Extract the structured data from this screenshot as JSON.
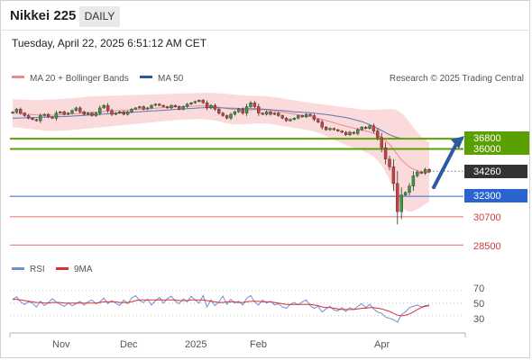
{
  "header": {
    "title": "Nikkei 225",
    "timeframe": "DAILY",
    "datetime": "Tuesday, April 22, 2025 6:51:12 AM CET"
  },
  "credit": "Research © 2025 Trading Central",
  "legend": {
    "ma20": "MA 20 + Bollinger Bands",
    "ma50": "MA 50",
    "rsi": "RSI",
    "rsi_ma": "9MA"
  },
  "colors": {
    "candle_up": "#3a9a3a",
    "candle_down": "#d23b3b",
    "bollinger_fill": "#fadada",
    "ma20": "#e88d8d",
    "ma50": "#5a78b4",
    "resistance": "#5aa000",
    "pivot": "#2a64d0",
    "support": "#e07070",
    "arrow": "#2c5aa0",
    "rsi": "#6f8fd6",
    "rsi_ma": "#d83030"
  },
  "chart_data": [
    {
      "type": "candlestick",
      "y_range": [
        27600,
        40600
      ],
      "x_labels": [
        "Nov",
        "Dec",
        "2025",
        "Feb",
        "Apr"
      ],
      "series": [
        {
          "name": "Nikkei 225",
          "close": [
            38880,
            39100,
            38800,
            38600,
            38400,
            38300,
            38200,
            38600,
            38700,
            38500,
            38400,
            38800,
            38900,
            38700,
            38800,
            39000,
            39200,
            38900,
            38700,
            38800,
            38600,
            38800,
            39200,
            39400,
            39000,
            38700,
            38800,
            38900,
            38700,
            38900,
            39100,
            39200,
            39300,
            39100,
            39200,
            39400,
            39500,
            39400,
            39300,
            39200,
            39400,
            39300,
            39100,
            39300,
            39500,
            39600,
            39700,
            39800,
            39600,
            39200,
            39400,
            39100,
            38800,
            38600,
            38400,
            38700,
            38900,
            39100,
            38800,
            39300,
            39600,
            39300,
            38800,
            38700,
            38900,
            38700,
            38800,
            38600,
            38400,
            38200,
            38300,
            38400,
            38600,
            38500,
            38700,
            38600,
            38300,
            38100,
            37700,
            37500,
            37600,
            37500,
            37400,
            37300,
            37100,
            37300,
            37200,
            37500,
            37700,
            37600,
            37800,
            37400,
            36900,
            36100,
            35200,
            34600,
            33300,
            31100,
            32400,
            32600,
            33100,
            33900,
            34200,
            34100,
            34400,
            34200
          ],
          "ma20": [
            38800,
            38780,
            38750,
            38720,
            38700,
            38680,
            38660,
            38650,
            38640,
            38630,
            38630,
            38640,
            38660,
            38680,
            38700,
            38720,
            38750,
            38780,
            38810,
            38840,
            38860,
            38880,
            38900,
            38920,
            38940,
            38960,
            38980,
            39000,
            39020,
            39040,
            39060,
            39080,
            39100,
            39120,
            39140,
            39160,
            39180,
            39200,
            39220,
            39240,
            39260,
            39280,
            39300,
            39310,
            39320,
            39330,
            39340,
            39350,
            39350,
            39340,
            39320,
            39290,
            39250,
            39200,
            39150,
            39110,
            39080,
            39060,
            39040,
            39040,
            39050,
            39060,
            39070,
            39060,
            39040,
            39010,
            38970,
            38920,
            38870,
            38820,
            38770,
            38720,
            38670,
            38620,
            38570,
            38520,
            38460,
            38390,
            38310,
            38220,
            38130,
            38040,
            37950,
            37860,
            37780,
            37700,
            37620,
            37550,
            37480,
            37400,
            37320,
            37220,
            37080,
            36900,
            36650,
            36350,
            35980,
            35550,
            35150,
            34850,
            34600,
            34420,
            34300,
            34230,
            34200,
            34180
          ],
          "bb_upper": [
            39900,
            39880,
            39860,
            39840,
            39830,
            39820,
            39820,
            39830,
            39840,
            39850,
            39860,
            39880,
            39900,
            39920,
            39940,
            39960,
            39990,
            40020,
            40050,
            40080,
            40100,
            40110,
            40120,
            40130,
            40140,
            40150,
            40160,
            40170,
            40180,
            40190,
            40200,
            40210,
            40220,
            40230,
            40240,
            40250,
            40260,
            40270,
            40280,
            40290,
            40300,
            40310,
            40320,
            40330,
            40340,
            40350,
            40360,
            40370,
            40380,
            40380,
            40370,
            40360,
            40340,
            40320,
            40300,
            40270,
            40240,
            40210,
            40180,
            40150,
            40140,
            40140,
            40140,
            40130,
            40110,
            40080,
            40040,
            40000,
            39950,
            39900,
            39850,
            39800,
            39750,
            39700,
            39650,
            39600,
            39560,
            39520,
            39480,
            39440,
            39400,
            39360,
            39320,
            39280,
            39240,
            39200,
            39160,
            39120,
            39080,
            39060,
            39050,
            39050,
            39060,
            39080,
            39100,
            39120,
            39100,
            39000,
            38800,
            38500,
            38100,
            37700,
            37300,
            37000,
            36700,
            36500
          ],
          "bb_lower": [
            37700,
            37680,
            37640,
            37600,
            37570,
            37540,
            37500,
            37470,
            37440,
            37410,
            37400,
            37400,
            37420,
            37440,
            37460,
            37480,
            37510,
            37540,
            37570,
            37600,
            37620,
            37650,
            37680,
            37710,
            37740,
            37770,
            37800,
            37830,
            37860,
            37890,
            37920,
            37950,
            37980,
            38010,
            38040,
            38070,
            38100,
            38130,
            38160,
            38190,
            38220,
            38250,
            38280,
            38290,
            38300,
            38310,
            38320,
            38330,
            38320,
            38300,
            38270,
            38220,
            38160,
            38080,
            38000,
            37950,
            37920,
            37910,
            37900,
            37930,
            37960,
            37980,
            38000,
            37990,
            37970,
            37940,
            37900,
            37840,
            37790,
            37740,
            37690,
            37640,
            37590,
            37540,
            37490,
            37440,
            37360,
            37260,
            37140,
            37000,
            36860,
            36720,
            36580,
            36440,
            36320,
            36200,
            36080,
            35980,
            35880,
            35740,
            35590,
            35390,
            35100,
            34720,
            34200,
            33580,
            32860,
            32100,
            31500,
            31200,
            31100,
            31140,
            31300,
            31460,
            31700,
            31860
          ],
          "ma50": [
            38400,
            38410,
            38420,
            38430,
            38440,
            38450,
            38460,
            38470,
            38480,
            38490,
            38500,
            38510,
            38520,
            38530,
            38540,
            38560,
            38580,
            38600,
            38620,
            38640,
            38660,
            38680,
            38700,
            38720,
            38740,
            38760,
            38780,
            38800,
            38820,
            38840,
            38860,
            38880,
            38900,
            38920,
            38940,
            38960,
            38980,
            39000,
            39020,
            39040,
            39060,
            39080,
            39100,
            39120,
            39140,
            39160,
            39180,
            39200,
            39210,
            39220,
            39220,
            39220,
            39210,
            39200,
            39190,
            39180,
            39170,
            39160,
            39150,
            39140,
            39130,
            39130,
            39120,
            39100,
            39080,
            39060,
            39040,
            39020,
            38990,
            38960,
            38930,
            38900,
            38880,
            38860,
            38840,
            38820,
            38790,
            38760,
            38720,
            38680,
            38640,
            38600,
            38550,
            38500,
            38450,
            38380,
            38300,
            38220,
            38130,
            38020,
            37900,
            37760,
            37600,
            37440,
            37270,
            37110,
            36980,
            36880,
            36820,
            36790,
            36780,
            36780,
            36780,
            36780,
            36780,
            36780
          ]
        }
      ],
      "levels": [
        {
          "value": 36800,
          "role": "resistance"
        },
        {
          "value": 36000,
          "role": "resistance"
        },
        {
          "value": 34260,
          "role": "last"
        },
        {
          "value": 32300,
          "role": "pivot"
        },
        {
          "value": 30700,
          "role": "support"
        },
        {
          "value": 28500,
          "role": "support"
        }
      ],
      "projection": {
        "from": 33000,
        "to": 36800
      }
    },
    {
      "type": "line",
      "title": "RSI",
      "y_range": [
        7,
        84
      ],
      "ticks": [
        70,
        50,
        30
      ],
      "series": [
        {
          "name": "RSI",
          "values": [
            56,
            60,
            52,
            48,
            52,
            50,
            44,
            53,
            46,
            51,
            57,
            52,
            48,
            45,
            50,
            46,
            49,
            53,
            47,
            52,
            55,
            49,
            52,
            58,
            49,
            54,
            50,
            46,
            55,
            49,
            58,
            62,
            54,
            51,
            56,
            47,
            54,
            59,
            50,
            57,
            61,
            53,
            49,
            57,
            52,
            61,
            55,
            50,
            62,
            44,
            55,
            46,
            52,
            61,
            48,
            56,
            50,
            53,
            47,
            58,
            62,
            52,
            47,
            55,
            50,
            53,
            47,
            49,
            44,
            42,
            48,
            51,
            47,
            52,
            55,
            46,
            42,
            45,
            36,
            41,
            45,
            39,
            38,
            43,
            37,
            43,
            40,
            45,
            49,
            43,
            48,
            41,
            36,
            34,
            28,
            26,
            24,
            20,
            32,
            36,
            43,
            45,
            47,
            44,
            46,
            47
          ]
        },
        {
          "name": "9MA",
          "values": [
            56,
            56,
            55,
            54,
            53,
            52,
            51,
            51,
            50,
            50,
            51,
            51,
            51,
            50,
            50,
            50,
            50,
            50,
            50,
            50,
            50,
            50,
            51,
            52,
            52,
            52,
            52,
            51,
            51,
            51,
            52,
            54,
            55,
            55,
            55,
            55,
            55,
            55,
            55,
            55,
            55,
            55,
            54,
            54,
            54,
            55,
            55,
            55,
            55,
            54,
            53,
            52,
            51,
            51,
            52,
            52,
            52,
            51,
            51,
            52,
            53,
            53,
            53,
            52,
            52,
            52,
            51,
            50,
            49,
            48,
            48,
            48,
            48,
            48,
            48,
            48,
            47,
            46,
            44,
            43,
            43,
            42,
            41,
            40,
            40,
            40,
            40,
            41,
            42,
            42,
            43,
            43,
            42,
            41,
            39,
            37,
            34,
            31,
            30,
            31,
            33,
            36,
            40,
            43,
            45,
            46
          ]
        }
      ]
    }
  ],
  "price_labels": {
    "r2": "36800",
    "r1": "36000",
    "last": "34260",
    "pivot": "32300",
    "s1": "30700",
    "s2": "28500"
  },
  "rsi_labels": {
    "t70": "70",
    "t50": "50",
    "t30": "30"
  },
  "x_axis": {
    "nov": "Nov",
    "dec": "Dec",
    "y2025": "2025",
    "feb": "Feb",
    "apr": "Apr"
  }
}
